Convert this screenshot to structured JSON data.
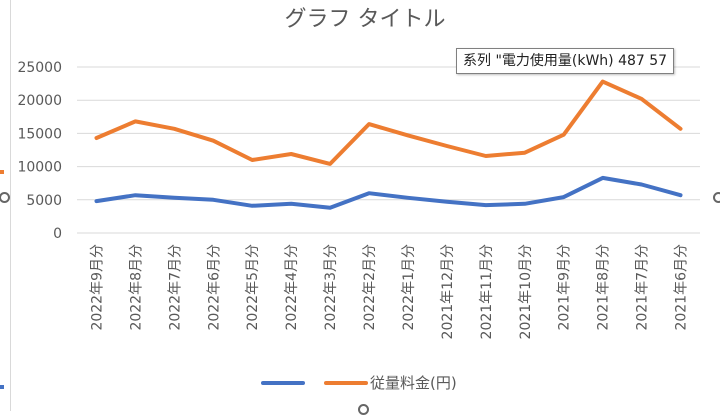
{
  "chart_data": {
    "type": "line",
    "title": "グラフ タイトル",
    "xlabel": "",
    "ylabel": "",
    "ylim": [
      0,
      25000
    ],
    "yticks": [
      0,
      5000,
      10000,
      15000,
      20000,
      25000
    ],
    "grid": true,
    "legend_position": "bottom",
    "categories": [
      "2022年9月分",
      "2022年8月分",
      "2022年7月分",
      "2022年6月分",
      "2022年5月分",
      "2022年4月分",
      "2022年3月分",
      "2022年2月分",
      "2022年1月分",
      "2021年12月分",
      "2021年11月分",
      "2021年10月分",
      "2021年9月分",
      "2021年8月分",
      "2021年7月分",
      "2021年6月分"
    ],
    "series": [
      {
        "name": "",
        "color": "#4472c4",
        "values": [
          4800,
          5700,
          5300,
          5000,
          4100,
          4400,
          3800,
          6000,
          5300,
          4700,
          4200,
          4400,
          5400,
          8300,
          7300,
          5700
        ]
      },
      {
        "name": "従量料金(円)",
        "color": "#ed7d31",
        "values": [
          14300,
          16800,
          15700,
          13900,
          11000,
          11900,
          10400,
          16400,
          14700,
          13100,
          11600,
          12100,
          14800,
          22800,
          20200,
          15700
        ]
      }
    ]
  },
  "tooltip": {
    "text": "系列 \"電力使用量(kWh) 487 57"
  },
  "colors": {
    "grid": "#d9d9d9",
    "axis_text": "#595959",
    "title": "#595959"
  }
}
